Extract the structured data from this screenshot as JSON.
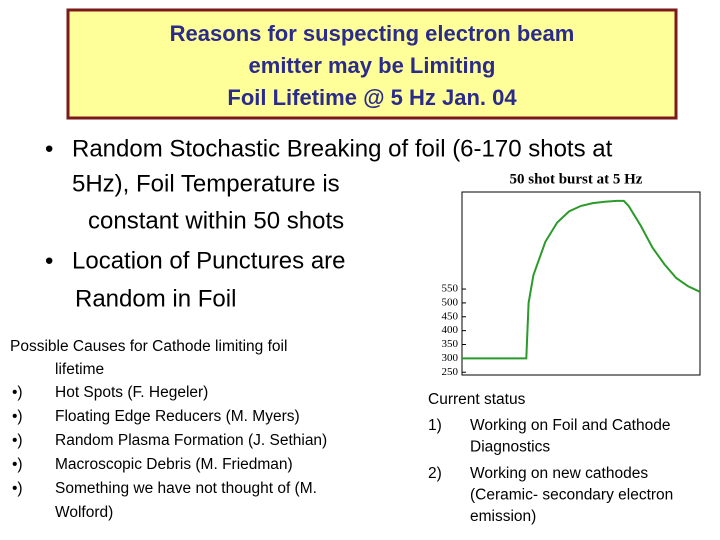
{
  "header": {
    "title": [
      "Reasons for suspecting electron beam",
      "emitter may be Limiting",
      "Foil Lifetime @ 5 Hz  Jan. 04"
    ]
  },
  "bullets": [
    {
      "marker": "•",
      "lines": [
        "Random Stochastic Breaking of foil (6-170 shots at",
        "5Hz),  Foil Temperature  is",
        "constant within 50 shots"
      ]
    },
    {
      "marker": "•",
      "lines": [
        "Location of Punctures are",
        "Random in Foil"
      ]
    }
  ],
  "causes": {
    "heading": [
      "Possible Causes for Cathode limiting foil",
      "lifetime"
    ],
    "items": [
      {
        "marker": "•)",
        "lines": [
          "Hot Spots (F. Hegeler)"
        ]
      },
      {
        "marker": "•)",
        "lines": [
          "Floating Edge Reducers (M. Myers)"
        ]
      },
      {
        "marker": "•)",
        "lines": [
          "Random Plasma Formation (J. Sethian)"
        ]
      },
      {
        "marker": "•)",
        "lines": [
          "Macroscopic Debris (M. Friedman)"
        ]
      },
      {
        "marker": "•)",
        "lines": [
          "Something we have not thought of (M.",
          "Wolford)"
        ]
      }
    ]
  },
  "status": {
    "heading": "Current status",
    "items": [
      {
        "marker": "1)",
        "lines": [
          "Working on Foil and Cathode",
          "Diagnostics"
        ]
      },
      {
        "marker": "2)",
        "lines": [
          "Working on new cathodes",
          "(Ceramic- secondary electron",
          "emission)"
        ]
      }
    ]
  },
  "chart_data": {
    "type": "line",
    "title": "50 shot burst at 5 Hz",
    "color": "#2a9a2a",
    "x": [
      0,
      10,
      20,
      27,
      28,
      30,
      35,
      40,
      45,
      50,
      55,
      60,
      65,
      68,
      70,
      75,
      80,
      85,
      90,
      95,
      100
    ],
    "values": [
      300,
      300,
      300,
      300,
      500,
      600,
      720,
      790,
      830,
      850,
      860,
      865,
      868,
      868,
      850,
      780,
      700,
      640,
      590,
      560,
      540
    ],
    "xlim": [
      0,
      100
    ],
    "ylim": [
      240,
      900
    ],
    "yticks": [
      250,
      300,
      350,
      400,
      450,
      500,
      550
    ]
  }
}
